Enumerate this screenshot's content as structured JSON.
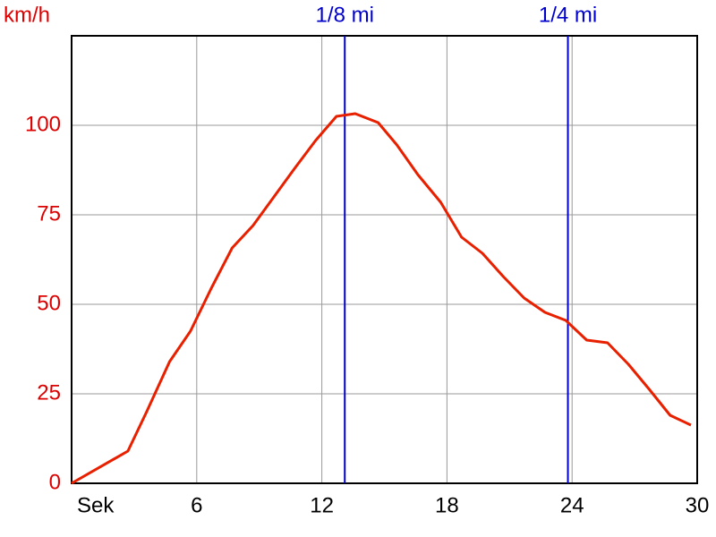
{
  "chart_data": {
    "type": "line",
    "y_label": "km/h",
    "x": [
      0,
      2.7,
      3.6,
      4.7,
      5.7,
      6.7,
      7.7,
      8.7,
      9.7,
      10.7,
      11.7,
      12.7,
      13.6,
      14.7,
      15.6,
      16.6,
      17.7,
      18.7,
      19.7,
      20.7,
      21.7,
      22.7,
      23.7,
      24.7,
      25.7,
      26.7,
      27.7,
      28.7,
      29.7
    ],
    "series": [
      {
        "color": "#e82000",
        "values": [
          0,
          9,
          20,
          34,
          42.5,
          54.5,
          65.75,
          72,
          80,
          88,
          95.75,
          102.5,
          103.25,
          100.75,
          94.5,
          86.25,
          78.5,
          68.75,
          64.25,
          57.75,
          51.75,
          47.75,
          45.5,
          40,
          39.25,
          33.25,
          26.25,
          19,
          16.25
        ]
      }
    ],
    "xlim": [
      0,
      30
    ],
    "ylim": [
      0,
      125
    ],
    "xticks": [
      {
        "value": 0,
        "label": "Sek"
      },
      6,
      12,
      18,
      24,
      30
    ],
    "yticks": [
      0,
      25,
      50,
      75,
      100
    ],
    "grid": true,
    "markers": [
      {
        "x": 13.1,
        "label": "1/8 mi",
        "color": "#0000cc"
      },
      {
        "x": 23.8,
        "label": "1/4 mi",
        "color": "#0000cc"
      }
    ],
    "y_tick_color": "#dd0000"
  }
}
